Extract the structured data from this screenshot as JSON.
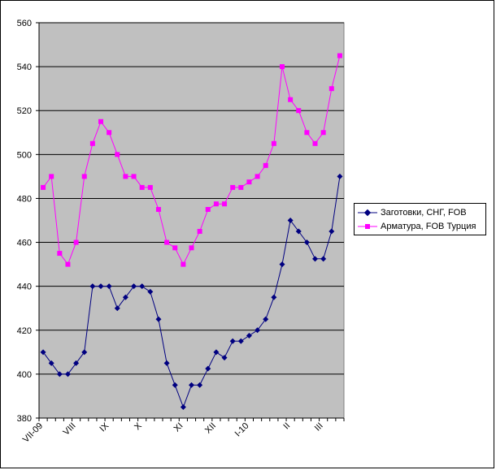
{
  "chart_data": {
    "type": "line",
    "title": "",
    "xlabel": "",
    "ylabel": "",
    "ylim": [
      380,
      560
    ],
    "yticks": [
      380,
      400,
      420,
      440,
      460,
      480,
      500,
      520,
      540,
      560
    ],
    "grid": true,
    "legend_position": "right",
    "x_tick_labels": [
      {
        "label": "VII-09",
        "index": 0
      },
      {
        "label": "VIII",
        "index": 4
      },
      {
        "label": "IX",
        "index": 8
      },
      {
        "label": "X",
        "index": 12
      },
      {
        "label": "XI",
        "index": 17
      },
      {
        "label": "XII",
        "index": 21
      },
      {
        "label": "I-10",
        "index": 25
      },
      {
        "label": "II",
        "index": 30
      },
      {
        "label": "III",
        "index": 34
      }
    ],
    "num_points": 37,
    "series": [
      {
        "name": "Заготовки, СНГ, FOB",
        "color": "#000080",
        "marker": "diamond",
        "values": [
          410,
          405,
          400,
          400,
          405,
          410,
          440,
          440,
          440,
          430,
          435,
          440,
          440,
          437.5,
          425,
          405,
          395,
          385,
          395,
          395,
          402.5,
          410,
          407.5,
          415,
          415,
          417.5,
          420,
          425,
          435,
          450,
          470,
          465,
          460,
          452.5,
          452.5,
          465,
          490
        ]
      },
      {
        "name": "Арматура, FOB Турция",
        "color": "#ff00ff",
        "marker": "square",
        "values": [
          485,
          490,
          455,
          450,
          460,
          490,
          505,
          515,
          510,
          500,
          490,
          490,
          485,
          485,
          475,
          460,
          457.5,
          450,
          457.5,
          465,
          475,
          477.5,
          477.5,
          485,
          485,
          487.5,
          490,
          495,
          505,
          540,
          525,
          520,
          510,
          505,
          510,
          530,
          545
        ]
      }
    ]
  },
  "colors": {
    "plot_background": "#c0c0c0",
    "gridline": "#000000"
  }
}
